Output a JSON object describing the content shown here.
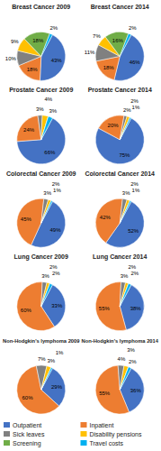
{
  "chart_data": [
    {
      "type": "pie",
      "title": "Breast Cancer 2009",
      "categories": [
        "Outpatient",
        "Inpatient",
        "Sick leaves",
        "Disability pensions",
        "Screening",
        "Travel costs"
      ],
      "values": [
        43,
        18,
        10,
        9,
        18,
        2
      ],
      "value_labels": [
        "43%",
        "18%",
        "10%",
        "9%",
        "18%",
        "2%"
      ],
      "colors": [
        "#4472c4",
        "#ed7d31",
        "#808080",
        "#ffc000",
        "#70ad47",
        "#00b0f0"
      ],
      "data_labels": true,
      "legend": "bottom"
    },
    {
      "type": "pie",
      "title": "Breast Cancer 2014",
      "categories": [
        "Outpatient",
        "Inpatient",
        "Sick leaves",
        "Disability pensions",
        "Screening",
        "Travel costs"
      ],
      "values": [
        46,
        18,
        11,
        7,
        16,
        2
      ],
      "value_labels": [
        "46%",
        "18%",
        "11%",
        "7%",
        "16%",
        "2%"
      ],
      "colors": [
        "#4472c4",
        "#ed7d31",
        "#808080",
        "#ffc000",
        "#70ad47",
        "#00b0f0"
      ],
      "data_labels": true
    },
    {
      "type": "pie",
      "title": "Prostate Cancer 2009",
      "categories": [
        "Outpatient",
        "Inpatient",
        "Sick leaves",
        "Disability pensions",
        "Screening",
        "Travel costs"
      ],
      "values": [
        66,
        24,
        3,
        4,
        0,
        3
      ],
      "value_labels": [
        "66%",
        "24%",
        "3%",
        "4%",
        null,
        "3%"
      ],
      "colors": [
        "#4472c4",
        "#ed7d31",
        "#808080",
        "#ffc000",
        "#70ad47",
        "#00b0f0"
      ],
      "data_labels": true
    },
    {
      "type": "pie",
      "title": "Prostate Cancer 2014",
      "categories": [
        "Outpatient",
        "Inpatient",
        "Sick leaves",
        "Disability pensions",
        "Screening",
        "Travel costs"
      ],
      "values": [
        75,
        20,
        2,
        2,
        0,
        1
      ],
      "value_labels": [
        "75%",
        "20%",
        "2%",
        "2%",
        null,
        "1%"
      ],
      "colors": [
        "#4472c4",
        "#ed7d31",
        "#808080",
        "#ffc000",
        "#70ad47",
        "#00b0f0"
      ],
      "data_labels": true
    },
    {
      "type": "pie",
      "title": "Colorectal Cancer 2009",
      "categories": [
        "Outpatient",
        "Inpatient",
        "Sick leaves",
        "Disability pensions",
        "Screening",
        "Travel costs"
      ],
      "values": [
        49,
        45,
        3,
        2,
        0,
        1
      ],
      "value_labels": [
        "49%",
        "45%",
        "3%",
        "2%",
        null,
        "1%"
      ],
      "colors": [
        "#4472c4",
        "#ed7d31",
        "#808080",
        "#ffc000",
        "#70ad47",
        "#00b0f0"
      ],
      "data_labels": true
    },
    {
      "type": "pie",
      "title": "Colorectal Cancer 2014",
      "categories": [
        "Outpatient",
        "Inpatient",
        "Sick leaves",
        "Disability pensions",
        "Screening",
        "Travel costs"
      ],
      "values": [
        52,
        42,
        3,
        2,
        0,
        1
      ],
      "value_labels": [
        "52%",
        "42%",
        "3%",
        "2%",
        null,
        "1%"
      ],
      "colors": [
        "#4472c4",
        "#ed7d31",
        "#808080",
        "#ffc000",
        "#70ad47",
        "#00b0f0"
      ],
      "data_labels": true
    },
    {
      "type": "pie",
      "title": "Lung Cancer 2009",
      "categories": [
        "Outpatient",
        "Inpatient",
        "Sick leaves",
        "Disability pensions",
        "Screening",
        "Travel costs"
      ],
      "values": [
        33,
        60,
        3,
        2,
        0,
        2
      ],
      "value_labels": [
        "33%",
        "60%",
        "3%",
        "2%",
        null,
        "2%"
      ],
      "colors": [
        "#4472c4",
        "#ed7d31",
        "#808080",
        "#ffc000",
        "#70ad47",
        "#00b0f0"
      ],
      "data_labels": true
    },
    {
      "type": "pie",
      "title": "Lung Cancer 2014",
      "categories": [
        "Outpatient",
        "Inpatient",
        "Sick leaves",
        "Disability pensions",
        "Screening",
        "Travel costs"
      ],
      "values": [
        38,
        55,
        3,
        2,
        0,
        2
      ],
      "value_labels": [
        "38%",
        "55%",
        "3%",
        "2%",
        null,
        "2%"
      ],
      "colors": [
        "#4472c4",
        "#ed7d31",
        "#808080",
        "#ffc000",
        "#70ad47",
        "#00b0f0"
      ],
      "data_labels": true
    },
    {
      "type": "pie",
      "title": "Non-Hodgkin's lymphoma 2009",
      "categories": [
        "Outpatient",
        "Inpatient",
        "Sick leaves",
        "Disability pensions",
        "Screening",
        "Travel costs"
      ],
      "values": [
        29,
        60,
        7,
        3,
        0,
        1
      ],
      "value_labels": [
        "29%",
        "60%",
        "7%",
        "3%",
        null,
        "1%"
      ],
      "colors": [
        "#4472c4",
        "#ed7d31",
        "#808080",
        "#ffc000",
        "#70ad47",
        "#00b0f0"
      ],
      "data_labels": true
    },
    {
      "type": "pie",
      "title": "Non-Hodgkin's lymphoma 2014",
      "categories": [
        "Outpatient",
        "Inpatient",
        "Sick leaves",
        "Disability pensions",
        "Screening",
        "Travel costs"
      ],
      "values": [
        36,
        55,
        4,
        3,
        0,
        2
      ],
      "value_labels": [
        "36%",
        "55%",
        "4%",
        "3%",
        null,
        "2%"
      ],
      "colors": [
        "#4472c4",
        "#ed7d31",
        "#808080",
        "#ffc000",
        "#70ad47",
        "#00b0f0"
      ],
      "data_labels": true
    }
  ]
}
